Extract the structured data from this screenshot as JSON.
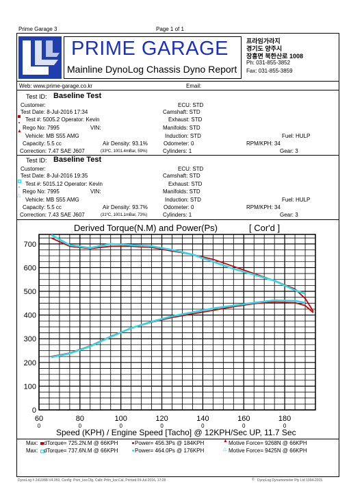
{
  "page_header": {
    "left": "Prime Garage 3",
    "center": "Page 1 of 1"
  },
  "brand": {
    "title": "PRIME GARAGE",
    "subtitle": "Mainline DynoLog Chassis Dyno Report",
    "korean_line1": "프라임가라지",
    "korean_line2": "경기도 양주시",
    "korean_line3": "장흥면 북한산로 1008",
    "phone": "Ph: 031-855-3852",
    "fax": "Fax: 031-855-3859"
  },
  "contact": {
    "web": "Web: www.prime-garage.co.kr",
    "email": "Email:"
  },
  "tests": [
    {
      "id_label": "Test ID:",
      "id": "Baseline Test",
      "customer": "Customer:",
      "date": "Test Date: 8-Jul-2016 17:34",
      "number": "Test #: 5005.2  Operator: Kevin",
      "rego": "Rego No: 7995",
      "vin": "VIN:",
      "vehicle": "Vehicle: MB S55 AMG",
      "capacity": "Capacity: 5.5 cc",
      "air": "Air Density: 93.1%",
      "correction": "Correction: 7.47 SAE J607",
      "conditions": "(33ºC, 1001.4mBar, 59%)",
      "ecu": "ECU: STD",
      "cam": "Camshaft: STD",
      "exhaust": "Exhaust: STD",
      "manifolds": "Manifolds: STD",
      "induction": "Induction: STD",
      "odometer": "Odometer: 0",
      "cylinders": "Cylinders: 1",
      "fuel": "Fuel: HULP",
      "rpmkph": "RPM/KPH: 34",
      "gear": "Gear: 3",
      "color": "#cc0000"
    },
    {
      "id_label": "Test ID:",
      "id": "Baseline Test",
      "customer": "Customer:",
      "date": "Test Date: 8-Jul-2016 19:35",
      "number": "Test #: 5015.12  Operator: Kevin",
      "rego": "Rego No: 7995",
      "vin": "VIN:",
      "vehicle": "Vehicle: MB S55 AMG",
      "capacity": "Capacity: 5.5 cc",
      "air": "Air Density: 93.7%",
      "correction": "Correction: 7.43 SAE J607",
      "conditions": "(31ºC, 1001.1mBar, 73%)",
      "ecu": "ECU: STD",
      "cam": "Camshaft: STD",
      "exhaust": "Exhaust: STD",
      "manifolds": "Manifolds: STD",
      "induction": "Induction: STD",
      "odometer": "Odometer: 0",
      "cylinders": "Cylinders: 1",
      "fuel": "Fuel: HULP",
      "rpmkph": "RPM/KPH: 34",
      "gear": "Gear: 3",
      "color": "#33d6e6"
    }
  ],
  "chart_data": {
    "type": "line",
    "title": "Derived Torque(N.M) and Power(Ps)",
    "title_suffix": "[ Cor'd ]",
    "xlabel": "Speed (KPH) / Engine Speed [Tacho] @ 12KPH/Sec UP, 11.7 Sec",
    "xlim": [
      60,
      195
    ],
    "ylim": [
      0,
      740
    ],
    "x_ticks": [
      "60",
      "80",
      "100",
      "120",
      "140",
      "160",
      "180"
    ],
    "x_tick_values": [
      60,
      80,
      100,
      120,
      140,
      160,
      180
    ],
    "x_subticks": [
      "0",
      "0",
      "0",
      "0",
      "0",
      "0",
      "0"
    ],
    "y_ticks": [
      "0",
      "100",
      "200",
      "300",
      "400",
      "500",
      "600",
      "700"
    ],
    "y_tick_values": [
      0,
      100,
      200,
      300,
      400,
      500,
      600,
      700
    ],
    "grid": true,
    "series": [
      {
        "name": "dTorque",
        "color": "#cc0000",
        "x": [
          66,
          75,
          85,
          95,
          105,
          115,
          125,
          135,
          145,
          155,
          165,
          175,
          185,
          190,
          194
        ],
        "y": [
          725,
          690,
          680,
          690,
          690,
          685,
          670,
          655,
          635,
          605,
          575,
          545,
          510,
          470,
          415
        ]
      },
      {
        "name": "dTorque",
        "color": "#33d6e6",
        "x": [
          66,
          75,
          85,
          95,
          105,
          115,
          125,
          135,
          145,
          155,
          165,
          175,
          185,
          190
        ],
        "y": [
          738,
          695,
          683,
          700,
          695,
          690,
          675,
          655,
          625,
          595,
          570,
          545,
          505,
          490
        ]
      },
      {
        "name": "Power",
        "color": "#cc0000",
        "x": [
          66,
          75,
          85,
          95,
          105,
          115,
          125,
          135,
          145,
          155,
          165,
          175,
          185,
          190,
          194
        ],
        "y": [
          225,
          240,
          270,
          310,
          345,
          370,
          390,
          405,
          420,
          435,
          448,
          455,
          452,
          440,
          410
        ]
      },
      {
        "name": "Power",
        "color": "#33d6e6",
        "x": [
          66,
          75,
          85,
          95,
          105,
          115,
          125,
          135,
          145,
          155,
          165,
          175,
          185,
          190
        ],
        "y": [
          222,
          238,
          268,
          308,
          345,
          372,
          395,
          412,
          428,
          440,
          452,
          462,
          460,
          452
        ]
      }
    ]
  },
  "max_rows": [
    {
      "label": "Max:",
      "torque": "dTorque= 725.2N.M @ 66KPH",
      "power": "Power= 456.3Ps @ 184KPH",
      "force": "Motive Force= 9268N @ 66KPH",
      "color": "#cc0000"
    },
    {
      "label": "Max:",
      "torque": "dTorque= 737.6N.M @ 66KPH",
      "power": "Power= 464.0Ps @ 176KPH",
      "force": "Motive Force= 9425N @ 66KPH",
      "color": "#33d6e6"
    }
  ],
  "footer": {
    "left": "DynoLog # 2410/88-V4.059, Config: Prim_kor.Cfg, Calb: Prim_kor.Cal, Printed 09-Jul-2016, 17:28",
    "right": "DynoLog Dynamometer Pty Ltd 1994-2015"
  }
}
